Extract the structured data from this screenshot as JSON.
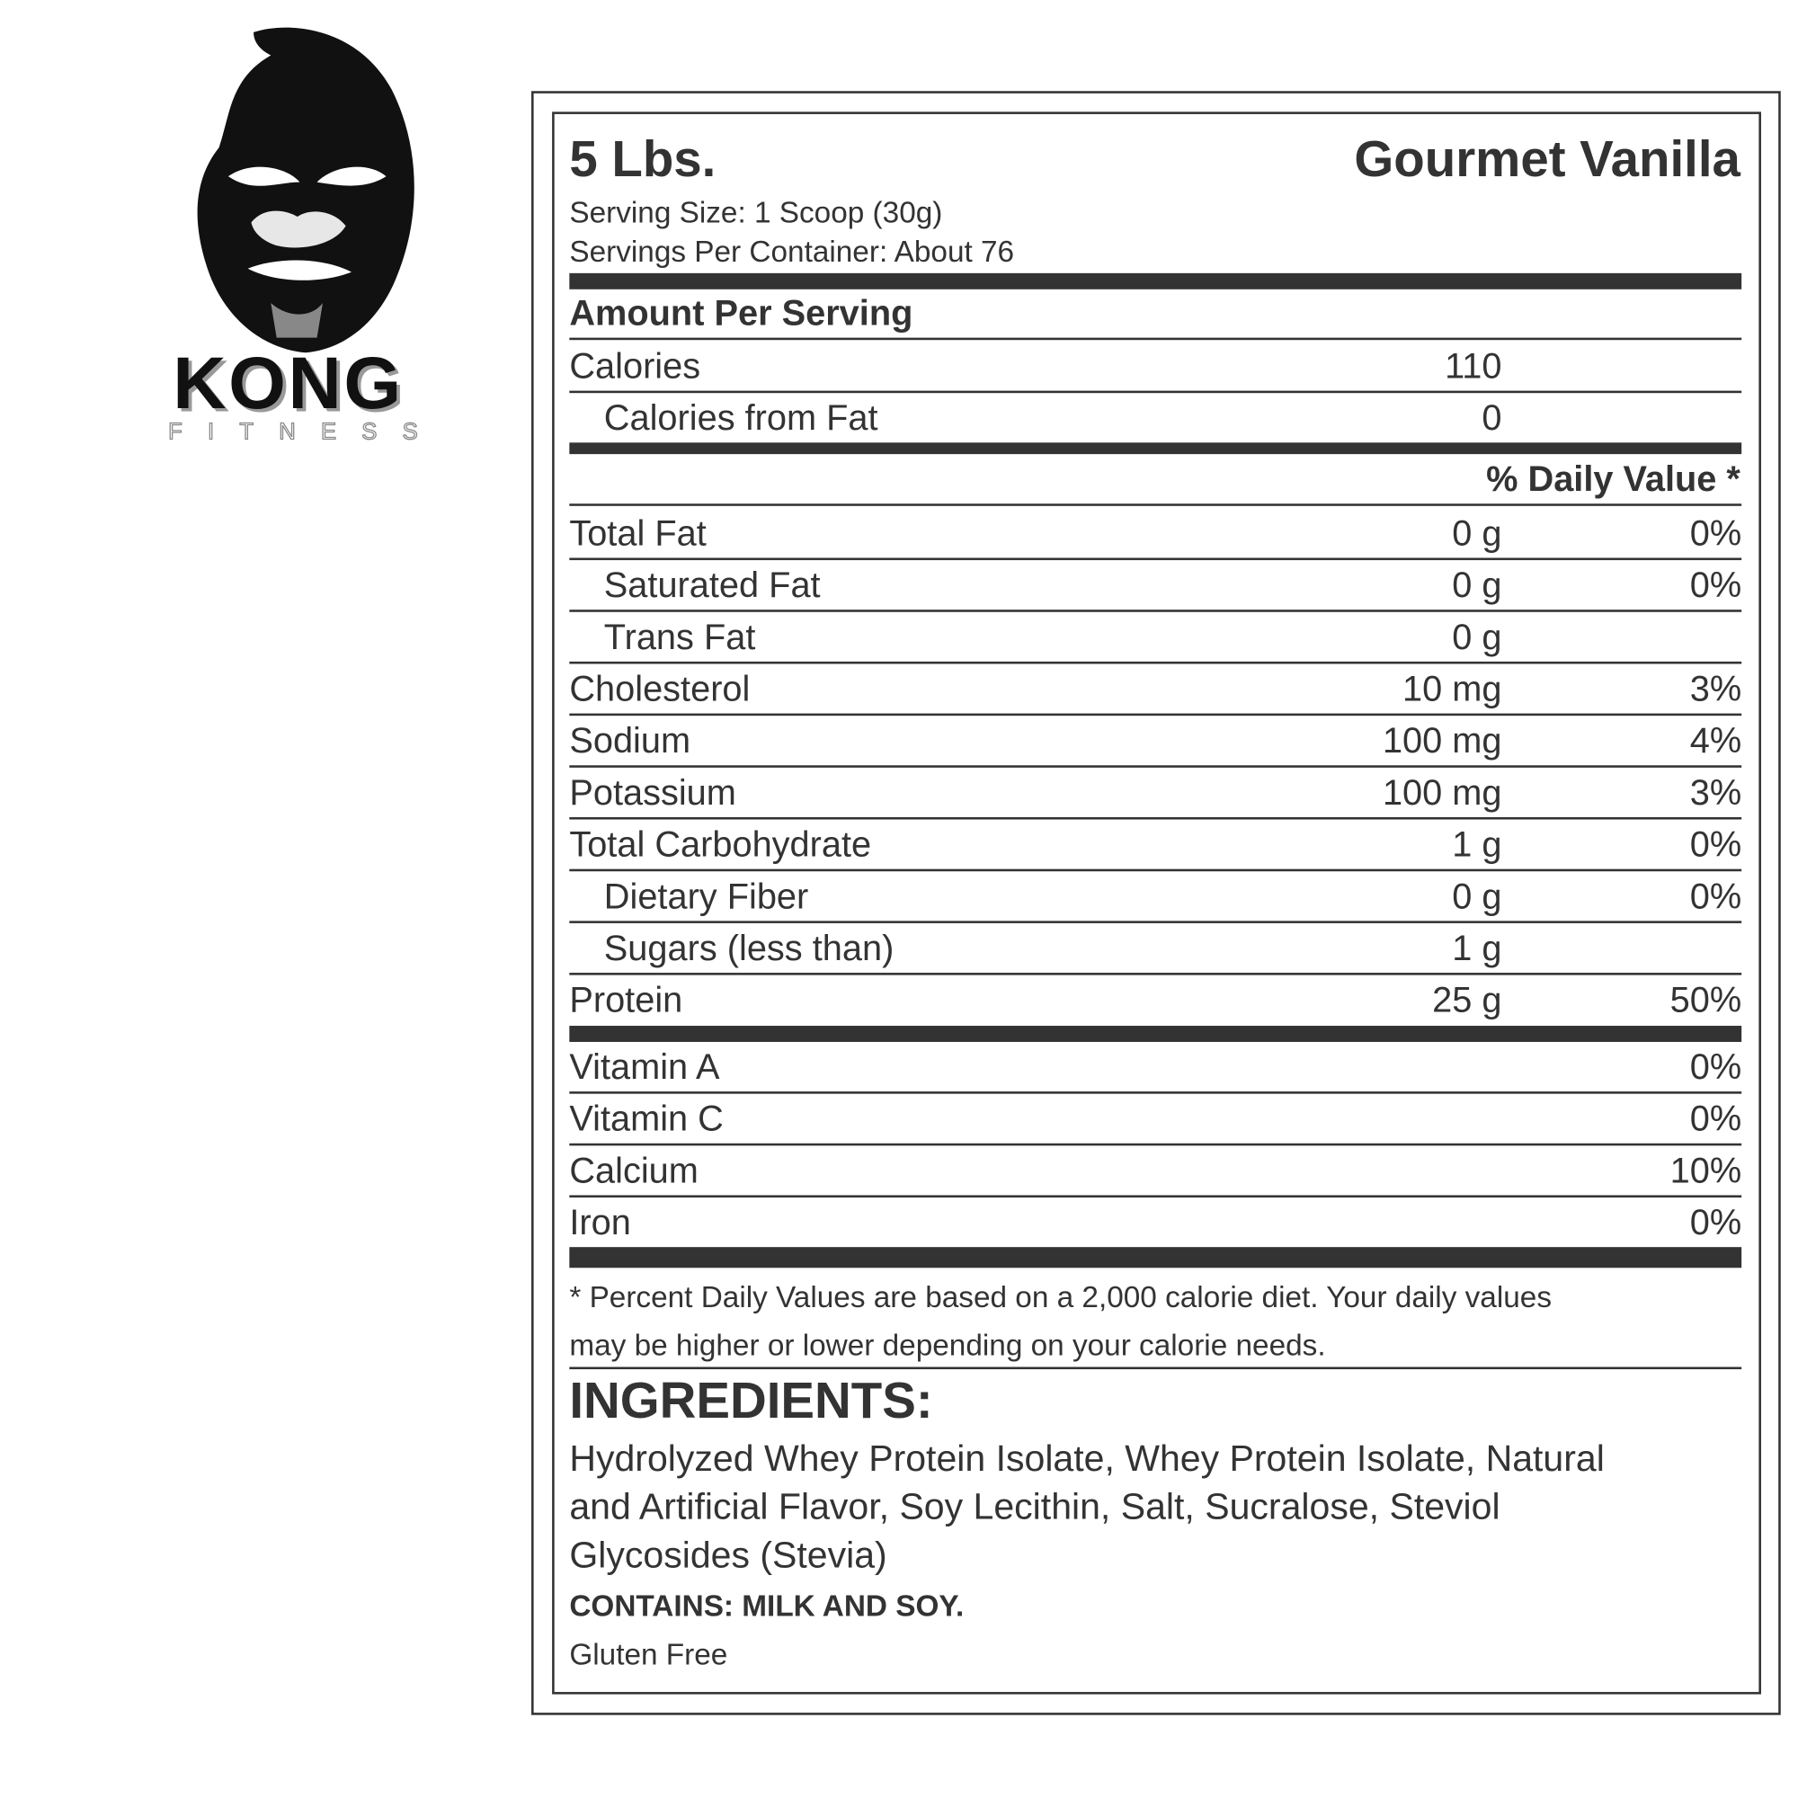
{
  "brand": {
    "name": "KONG",
    "subname": "FITNESS"
  },
  "label": {
    "size": "5 Lbs.",
    "flavor": "Gourmet Vanilla",
    "serving_size": "Serving Size: 1 Scoop (30g)",
    "servings_per_container": "Servings Per Container: About 76",
    "amount_per_serving": "Amount Per Serving",
    "calories": {
      "label": "Calories",
      "value": "110"
    },
    "calories_from_fat": {
      "label": "Calories from Fat",
      "value": "0"
    },
    "daily_value_header": "% Daily Value *",
    "nutrients": [
      {
        "label": "Total Fat",
        "amount": "0 g",
        "dv": "0%"
      },
      {
        "label": "Saturated Fat",
        "amount": "0 g",
        "dv": "0%"
      },
      {
        "label": "Trans Fat",
        "amount": "0 g",
        "dv": ""
      },
      {
        "label": "Cholesterol",
        "amount": "10 mg",
        "dv": "3%"
      },
      {
        "label": "Sodium",
        "amount": "100 mg",
        "dv": "4%"
      },
      {
        "label": "Potassium",
        "amount": "100 mg",
        "dv": "3%"
      },
      {
        "label": "Total Carbohydrate",
        "amount": "1 g",
        "dv": "0%"
      },
      {
        "label": "Dietary Fiber",
        "amount": "0 g",
        "dv": "0%"
      },
      {
        "label": "Sugars (less than)",
        "amount": "1 g",
        "dv": ""
      },
      {
        "label": "Protein",
        "amount": "25 g",
        "dv": "50%"
      }
    ],
    "vitamins": [
      {
        "label": "Vitamin A",
        "dv": "0%"
      },
      {
        "label": "Vitamin C",
        "dv": "0%"
      },
      {
        "label": "Calcium",
        "dv": "10%"
      },
      {
        "label": "Iron",
        "dv": "0%"
      }
    ],
    "footnote_line1": "* Percent Daily Values are based on a 2,000 calorie diet. Your daily values",
    "footnote_line2": "may be higher or lower depending on your calorie needs.",
    "ingredients_title": "INGREDIENTS:",
    "ingredients_line1": "Hydrolyzed Whey Protein Isolate, Whey Protein Isolate, Natural",
    "ingredients_line2": "and Artificial Flavor, Soy Lecithin, Salt, Sucralose, Steviol",
    "ingredients_line3": "Glycosides (Stevia)",
    "allergens": "CONTAINS: MILK AND SOY.",
    "gluten": "Gluten Free"
  }
}
